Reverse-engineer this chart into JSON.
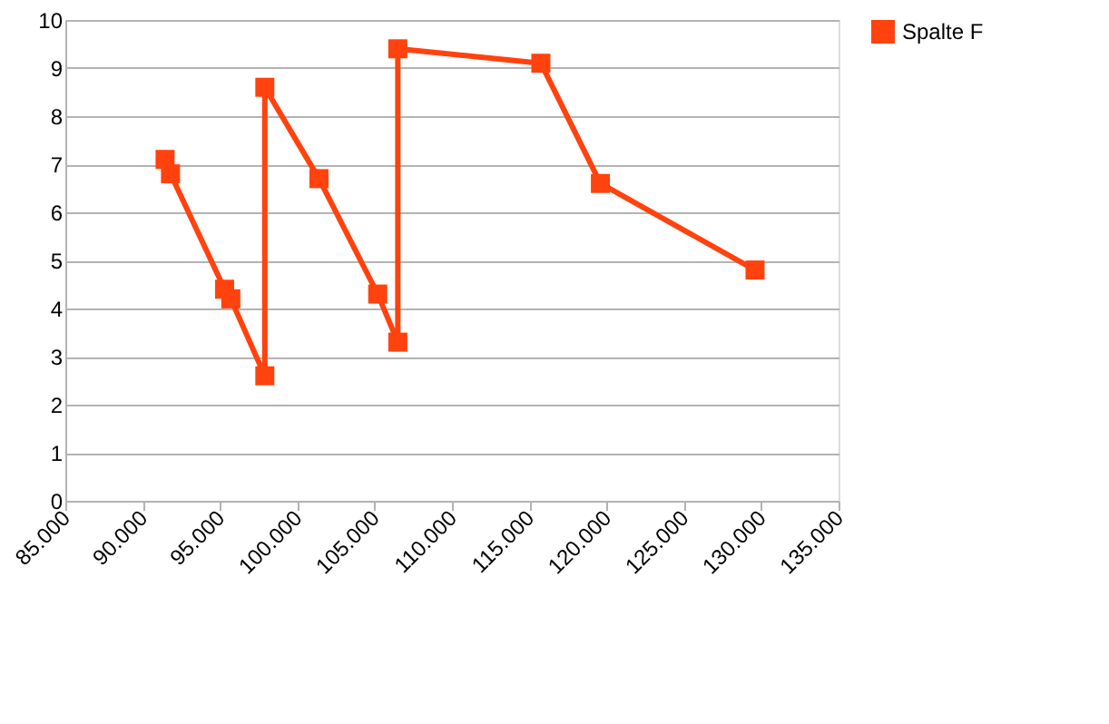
{
  "chart_data": {
    "type": "line",
    "x": [
      91450,
      91800,
      95300,
      95700,
      97900,
      97900,
      101400,
      105200,
      106500,
      106500,
      115750,
      119600,
      129600
    ],
    "series": [
      {
        "name": "Spalte F",
        "color": "#ff420e",
        "values": [
          7.1,
          6.8,
          4.4,
          4.2,
          2.6,
          8.6,
          6.7,
          4.3,
          3.3,
          9.4,
          9.1,
          6.6,
          4.8
        ]
      }
    ],
    "xlim": [
      85000,
      135000
    ],
    "xticks": [
      {
        "value": 85000,
        "label": "85.000"
      },
      {
        "value": 90000,
        "label": "90.000"
      },
      {
        "value": 95000,
        "label": "95.000"
      },
      {
        "value": 100000,
        "label": "100.000"
      },
      {
        "value": 105000,
        "label": "105.000"
      },
      {
        "value": 110000,
        "label": "110.000"
      },
      {
        "value": 115000,
        "label": "115.000"
      },
      {
        "value": 120000,
        "label": "120.000"
      },
      {
        "value": 125000,
        "label": "125.000"
      },
      {
        "value": 130000,
        "label": "130.000"
      },
      {
        "value": 135000,
        "label": "135.000"
      }
    ],
    "ylim": [
      0,
      10
    ],
    "yticks": [
      0,
      1,
      2,
      3,
      4,
      5,
      6,
      7,
      8,
      9,
      10
    ],
    "grid": "y",
    "legend": "right",
    "marker": "square",
    "line_style": "solid"
  }
}
